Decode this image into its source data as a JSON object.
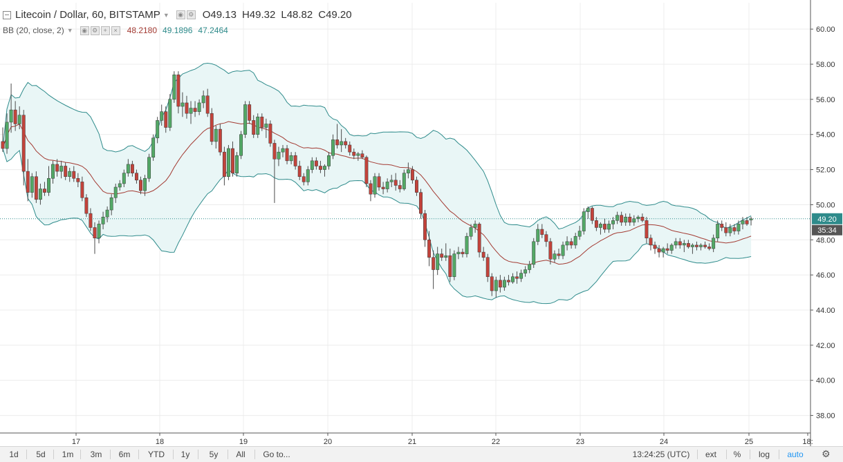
{
  "legend": {
    "symbol": "Litecoin / Dollar, 60, BITSTAMP",
    "o_label": "O",
    "o_value": "49.13",
    "h_label": "H",
    "h_value": "49.32",
    "l_label": "L",
    "l_value": "48.82",
    "c_label": "C",
    "c_value": "49.20"
  },
  "indicator": {
    "label": "BB (20, close, 2)",
    "basis": "48.2180",
    "upper": "49.1896",
    "lower": "47.2464"
  },
  "price_tag": {
    "last": "49.20",
    "countdown": "35:34"
  },
  "colors": {
    "up": "#53a966",
    "down": "#c3433b",
    "basis": "#a33a32",
    "bands": "#2e8b8b",
    "band_fill": "#e9f6f6",
    "grid": "#ececec",
    "axis_text": "#333333",
    "price_tag": "#2e8b8b",
    "countdown_tag": "#555555"
  },
  "bottom_bar": {
    "buttons": [
      "1d",
      "5d",
      "1m",
      "3m",
      "6m",
      "YTD",
      "1y",
      "5y",
      "All",
      "Go to..."
    ],
    "time": "13:24:25 (UTC)",
    "right_buttons": [
      "ext",
      "%",
      "log",
      "auto"
    ],
    "gear_icon": "gear-icon"
  },
  "chart_data": {
    "type": "candlestick",
    "title": "Litecoin / Dollar, 60, BITSTAMP",
    "xlabel": "",
    "ylabel": "",
    "ylim": [
      37.0,
      61.5
    ],
    "y_ticks": [
      38,
      40,
      42,
      44,
      46,
      48,
      50,
      52,
      54,
      56,
      58,
      60
    ],
    "y_tick_labels": [
      "38.00",
      "40.00",
      "42.00",
      "44.00",
      "46.00",
      "48.00",
      "50.00",
      "52.00",
      "54.00",
      "56.00",
      "58.00",
      "60.00"
    ],
    "x_tick_labels": [
      "17",
      "18",
      "19",
      "20",
      "21",
      "22",
      "23",
      "24",
      "25",
      "18:"
    ],
    "last_price": 49.2,
    "grid": true,
    "candles": [
      {
        "o": 53.6,
        "h": 54.4,
        "l": 53.0,
        "c": 53.2
      },
      {
        "o": 53.2,
        "h": 55.2,
        "l": 52.9,
        "c": 54.7
      },
      {
        "o": 54.7,
        "h": 56.9,
        "l": 54.1,
        "c": 55.4
      },
      {
        "o": 55.4,
        "h": 55.9,
        "l": 54.2,
        "c": 54.6
      },
      {
        "o": 54.6,
        "h": 55.6,
        "l": 54.3,
        "c": 55.1
      },
      {
        "o": 55.1,
        "h": 55.4,
        "l": 51.1,
        "c": 51.9
      },
      {
        "o": 51.9,
        "h": 52.6,
        "l": 50.2,
        "c": 50.7
      },
      {
        "o": 50.7,
        "h": 51.8,
        "l": 50.4,
        "c": 51.6
      },
      {
        "o": 51.6,
        "h": 51.9,
        "l": 50.1,
        "c": 50.3
      },
      {
        "o": 50.3,
        "h": 51.2,
        "l": 50.0,
        "c": 50.9
      },
      {
        "o": 50.9,
        "h": 51.3,
        "l": 50.5,
        "c": 50.7
      },
      {
        "o": 50.7,
        "h": 52.2,
        "l": 50.5,
        "c": 51.5
      },
      {
        "o": 51.5,
        "h": 52.5,
        "l": 51.2,
        "c": 52.3
      },
      {
        "o": 52.3,
        "h": 52.6,
        "l": 51.6,
        "c": 51.9
      },
      {
        "o": 51.9,
        "h": 52.5,
        "l": 51.5,
        "c": 52.2
      },
      {
        "o": 52.2,
        "h": 52.4,
        "l": 51.4,
        "c": 51.6
      },
      {
        "o": 51.6,
        "h": 52.1,
        "l": 51.3,
        "c": 51.9
      },
      {
        "o": 51.9,
        "h": 52.2,
        "l": 51.3,
        "c": 51.5
      },
      {
        "o": 51.5,
        "h": 51.8,
        "l": 51.0,
        "c": 51.3
      },
      {
        "o": 51.3,
        "h": 51.6,
        "l": 50.2,
        "c": 50.4
      },
      {
        "o": 50.4,
        "h": 50.6,
        "l": 49.3,
        "c": 49.5
      },
      {
        "o": 49.5,
        "h": 49.8,
        "l": 48.5,
        "c": 48.7
      },
      {
        "o": 48.7,
        "h": 49.0,
        "l": 47.2,
        "c": 48.1
      },
      {
        "o": 48.1,
        "h": 49.1,
        "l": 47.8,
        "c": 48.9
      },
      {
        "o": 48.9,
        "h": 49.6,
        "l": 48.6,
        "c": 49.3
      },
      {
        "o": 49.3,
        "h": 49.9,
        "l": 49.0,
        "c": 49.7
      },
      {
        "o": 49.7,
        "h": 50.6,
        "l": 49.4,
        "c": 50.4
      },
      {
        "o": 50.4,
        "h": 51.2,
        "l": 50.1,
        "c": 51.0
      },
      {
        "o": 51.0,
        "h": 51.4,
        "l": 50.8,
        "c": 51.2
      },
      {
        "o": 51.2,
        "h": 52.0,
        "l": 51.0,
        "c": 51.8
      },
      {
        "o": 51.8,
        "h": 52.6,
        "l": 51.6,
        "c": 52.3
      },
      {
        "o": 52.3,
        "h": 52.5,
        "l": 51.6,
        "c": 51.8
      },
      {
        "o": 51.8,
        "h": 52.0,
        "l": 51.2,
        "c": 51.4
      },
      {
        "o": 51.4,
        "h": 51.6,
        "l": 50.6,
        "c": 50.8
      },
      {
        "o": 50.8,
        "h": 51.7,
        "l": 50.5,
        "c": 51.5
      },
      {
        "o": 51.5,
        "h": 52.9,
        "l": 51.3,
        "c": 52.7
      },
      {
        "o": 52.7,
        "h": 54.0,
        "l": 52.5,
        "c": 53.8
      },
      {
        "o": 53.8,
        "h": 55.0,
        "l": 53.5,
        "c": 54.8
      },
      {
        "o": 54.8,
        "h": 55.7,
        "l": 54.5,
        "c": 55.3
      },
      {
        "o": 55.3,
        "h": 55.6,
        "l": 54.1,
        "c": 54.4
      },
      {
        "o": 54.4,
        "h": 56.3,
        "l": 54.2,
        "c": 56.0
      },
      {
        "o": 56.0,
        "h": 57.6,
        "l": 55.8,
        "c": 57.4
      },
      {
        "o": 57.4,
        "h": 57.6,
        "l": 55.2,
        "c": 55.6
      },
      {
        "o": 55.6,
        "h": 56.4,
        "l": 55.0,
        "c": 55.8
      },
      {
        "o": 55.8,
        "h": 56.2,
        "l": 54.9,
        "c": 55.2
      },
      {
        "o": 55.2,
        "h": 55.9,
        "l": 54.6,
        "c": 55.5
      },
      {
        "o": 55.5,
        "h": 55.9,
        "l": 55.0,
        "c": 55.3
      },
      {
        "o": 55.3,
        "h": 56.0,
        "l": 55.1,
        "c": 55.8
      },
      {
        "o": 55.8,
        "h": 56.5,
        "l": 55.5,
        "c": 56.2
      },
      {
        "o": 56.2,
        "h": 56.6,
        "l": 55.0,
        "c": 55.2
      },
      {
        "o": 55.2,
        "h": 55.5,
        "l": 53.4,
        "c": 53.6
      },
      {
        "o": 53.6,
        "h": 54.5,
        "l": 53.2,
        "c": 54.3
      },
      {
        "o": 54.3,
        "h": 54.6,
        "l": 52.8,
        "c": 53.0
      },
      {
        "o": 53.0,
        "h": 53.3,
        "l": 51.1,
        "c": 51.6
      },
      {
        "o": 51.6,
        "h": 53.4,
        "l": 51.4,
        "c": 53.2
      },
      {
        "o": 53.2,
        "h": 53.6,
        "l": 51.6,
        "c": 51.8
      },
      {
        "o": 51.8,
        "h": 53.0,
        "l": 51.6,
        "c": 52.8
      },
      {
        "o": 52.8,
        "h": 54.2,
        "l": 52.6,
        "c": 54.0
      },
      {
        "o": 54.0,
        "h": 55.9,
        "l": 53.8,
        "c": 55.7
      },
      {
        "o": 55.7,
        "h": 55.9,
        "l": 54.6,
        "c": 54.8
      },
      {
        "o": 54.8,
        "h": 55.1,
        "l": 53.8,
        "c": 54.0
      },
      {
        "o": 54.0,
        "h": 55.2,
        "l": 53.8,
        "c": 55.0
      },
      {
        "o": 55.0,
        "h": 55.2,
        "l": 54.2,
        "c": 54.4
      },
      {
        "o": 54.4,
        "h": 54.9,
        "l": 53.8,
        "c": 54.6
      },
      {
        "o": 54.6,
        "h": 54.8,
        "l": 53.3,
        "c": 53.5
      },
      {
        "o": 53.5,
        "h": 53.7,
        "l": 50.1,
        "c": 52.6
      },
      {
        "o": 52.6,
        "h": 53.3,
        "l": 52.2,
        "c": 53.0
      },
      {
        "o": 53.0,
        "h": 53.4,
        "l": 52.7,
        "c": 53.2
      },
      {
        "o": 53.2,
        "h": 53.4,
        "l": 52.3,
        "c": 52.5
      },
      {
        "o": 52.5,
        "h": 53.0,
        "l": 52.3,
        "c": 52.8
      },
      {
        "o": 52.8,
        "h": 53.0,
        "l": 52.0,
        "c": 52.2
      },
      {
        "o": 52.2,
        "h": 52.5,
        "l": 51.4,
        "c": 51.6
      },
      {
        "o": 51.6,
        "h": 51.8,
        "l": 51.1,
        "c": 51.3
      },
      {
        "o": 51.3,
        "h": 52.2,
        "l": 51.1,
        "c": 52.0
      },
      {
        "o": 52.0,
        "h": 52.7,
        "l": 51.8,
        "c": 52.5
      },
      {
        "o": 52.5,
        "h": 52.7,
        "l": 52.0,
        "c": 52.2
      },
      {
        "o": 52.2,
        "h": 52.5,
        "l": 51.8,
        "c": 52.0
      },
      {
        "o": 52.0,
        "h": 52.3,
        "l": 51.6,
        "c": 52.2
      },
      {
        "o": 52.2,
        "h": 53.0,
        "l": 52.0,
        "c": 52.8
      },
      {
        "o": 52.8,
        "h": 54.0,
        "l": 52.6,
        "c": 53.7
      },
      {
        "o": 53.7,
        "h": 54.6,
        "l": 53.2,
        "c": 53.4
      },
      {
        "o": 53.4,
        "h": 54.3,
        "l": 53.0,
        "c": 53.6
      },
      {
        "o": 53.6,
        "h": 53.8,
        "l": 53.2,
        "c": 53.4
      },
      {
        "o": 53.4,
        "h": 53.6,
        "l": 52.8,
        "c": 53.0
      },
      {
        "o": 53.0,
        "h": 53.2,
        "l": 52.6,
        "c": 52.8
      },
      {
        "o": 52.8,
        "h": 53.0,
        "l": 52.5,
        "c": 52.9
      },
      {
        "o": 52.9,
        "h": 53.1,
        "l": 52.6,
        "c": 52.7
      },
      {
        "o": 52.7,
        "h": 52.8,
        "l": 51.0,
        "c": 51.2
      },
      {
        "o": 51.2,
        "h": 51.4,
        "l": 50.2,
        "c": 50.6
      },
      {
        "o": 50.6,
        "h": 51.8,
        "l": 50.4,
        "c": 51.6
      },
      {
        "o": 51.6,
        "h": 51.8,
        "l": 50.8,
        "c": 51.0
      },
      {
        "o": 51.0,
        "h": 51.3,
        "l": 50.6,
        "c": 50.9
      },
      {
        "o": 50.9,
        "h": 51.5,
        "l": 50.7,
        "c": 51.3
      },
      {
        "o": 51.3,
        "h": 51.7,
        "l": 51.0,
        "c": 51.4
      },
      {
        "o": 51.4,
        "h": 51.8,
        "l": 50.8,
        "c": 51.1
      },
      {
        "o": 51.1,
        "h": 51.4,
        "l": 50.7,
        "c": 50.9
      },
      {
        "o": 50.9,
        "h": 52.0,
        "l": 50.8,
        "c": 51.8
      },
      {
        "o": 51.8,
        "h": 52.4,
        "l": 51.5,
        "c": 52.0
      },
      {
        "o": 52.0,
        "h": 52.2,
        "l": 51.2,
        "c": 51.4
      },
      {
        "o": 51.4,
        "h": 51.6,
        "l": 50.5,
        "c": 50.7
      },
      {
        "o": 50.7,
        "h": 50.9,
        "l": 49.2,
        "c": 49.5
      },
      {
        "o": 49.5,
        "h": 49.7,
        "l": 47.6,
        "c": 48.0
      },
      {
        "o": 48.0,
        "h": 48.5,
        "l": 46.5,
        "c": 47.0
      },
      {
        "o": 47.0,
        "h": 47.4,
        "l": 45.2,
        "c": 46.3
      },
      {
        "o": 46.3,
        "h": 47.6,
        "l": 46.0,
        "c": 47.2
      },
      {
        "o": 47.2,
        "h": 47.5,
        "l": 46.8,
        "c": 47.0
      },
      {
        "o": 47.0,
        "h": 47.8,
        "l": 46.8,
        "c": 47.1
      },
      {
        "o": 47.1,
        "h": 47.5,
        "l": 45.6,
        "c": 45.9
      },
      {
        "o": 45.9,
        "h": 47.4,
        "l": 45.7,
        "c": 47.2
      },
      {
        "o": 47.2,
        "h": 47.6,
        "l": 46.9,
        "c": 47.3
      },
      {
        "o": 47.3,
        "h": 47.5,
        "l": 47.0,
        "c": 47.2
      },
      {
        "o": 47.2,
        "h": 48.4,
        "l": 47.0,
        "c": 48.2
      },
      {
        "o": 48.2,
        "h": 48.9,
        "l": 48.0,
        "c": 48.7
      },
      {
        "o": 48.7,
        "h": 49.1,
        "l": 48.4,
        "c": 48.9
      },
      {
        "o": 48.9,
        "h": 49.0,
        "l": 47.0,
        "c": 47.3
      },
      {
        "o": 47.3,
        "h": 47.6,
        "l": 46.8,
        "c": 47.0
      },
      {
        "o": 47.0,
        "h": 47.2,
        "l": 45.6,
        "c": 45.9
      },
      {
        "o": 45.9,
        "h": 46.1,
        "l": 44.8,
        "c": 45.1
      },
      {
        "o": 45.1,
        "h": 45.9,
        "l": 44.7,
        "c": 45.7
      },
      {
        "o": 45.7,
        "h": 46.0,
        "l": 45.0,
        "c": 45.3
      },
      {
        "o": 45.3,
        "h": 45.9,
        "l": 45.1,
        "c": 45.7
      },
      {
        "o": 45.7,
        "h": 46.0,
        "l": 45.4,
        "c": 45.6
      },
      {
        "o": 45.6,
        "h": 46.1,
        "l": 45.5,
        "c": 45.9
      },
      {
        "o": 45.9,
        "h": 46.2,
        "l": 45.5,
        "c": 45.8
      },
      {
        "o": 45.8,
        "h": 46.3,
        "l": 45.6,
        "c": 46.1
      },
      {
        "o": 46.1,
        "h": 46.5,
        "l": 45.9,
        "c": 46.3
      },
      {
        "o": 46.3,
        "h": 46.8,
        "l": 46.1,
        "c": 46.6
      },
      {
        "o": 46.6,
        "h": 48.1,
        "l": 46.4,
        "c": 47.9
      },
      {
        "o": 47.9,
        "h": 48.9,
        "l": 47.7,
        "c": 48.6
      },
      {
        "o": 48.6,
        "h": 48.9,
        "l": 48.1,
        "c": 48.3
      },
      {
        "o": 48.3,
        "h": 48.5,
        "l": 47.6,
        "c": 47.9
      },
      {
        "o": 47.9,
        "h": 48.1,
        "l": 46.6,
        "c": 46.9
      },
      {
        "o": 46.9,
        "h": 47.4,
        "l": 46.7,
        "c": 47.2
      },
      {
        "o": 47.2,
        "h": 47.5,
        "l": 46.9,
        "c": 47.1
      },
      {
        "o": 47.1,
        "h": 47.9,
        "l": 46.9,
        "c": 47.7
      },
      {
        "o": 47.7,
        "h": 48.2,
        "l": 47.4,
        "c": 47.9
      },
      {
        "o": 47.9,
        "h": 48.1,
        "l": 47.5,
        "c": 47.7
      },
      {
        "o": 47.7,
        "h": 48.4,
        "l": 47.5,
        "c": 48.2
      },
      {
        "o": 48.2,
        "h": 48.8,
        "l": 48.0,
        "c": 48.5
      },
      {
        "o": 48.5,
        "h": 49.8,
        "l": 48.3,
        "c": 49.6
      },
      {
        "o": 49.6,
        "h": 49.9,
        "l": 49.2,
        "c": 49.8
      },
      {
        "o": 49.8,
        "h": 49.9,
        "l": 48.9,
        "c": 49.1
      },
      {
        "o": 49.1,
        "h": 49.3,
        "l": 48.5,
        "c": 48.7
      },
      {
        "o": 48.7,
        "h": 49.0,
        "l": 48.3,
        "c": 48.9
      },
      {
        "o": 48.9,
        "h": 49.2,
        "l": 48.4,
        "c": 48.6
      },
      {
        "o": 48.6,
        "h": 49.1,
        "l": 48.4,
        "c": 48.9
      },
      {
        "o": 48.9,
        "h": 49.3,
        "l": 48.6,
        "c": 49.1
      },
      {
        "o": 49.1,
        "h": 49.6,
        "l": 48.9,
        "c": 49.4
      },
      {
        "o": 49.4,
        "h": 49.6,
        "l": 48.8,
        "c": 49.0
      },
      {
        "o": 49.0,
        "h": 49.5,
        "l": 48.8,
        "c": 49.3
      },
      {
        "o": 49.3,
        "h": 49.5,
        "l": 48.8,
        "c": 49.0
      },
      {
        "o": 49.0,
        "h": 49.4,
        "l": 48.8,
        "c": 49.2
      },
      {
        "o": 49.2,
        "h": 49.4,
        "l": 49.0,
        "c": 49.3
      },
      {
        "o": 49.3,
        "h": 49.5,
        "l": 49.0,
        "c": 49.1
      },
      {
        "o": 49.1,
        "h": 49.3,
        "l": 47.8,
        "c": 48.1
      },
      {
        "o": 48.1,
        "h": 48.3,
        "l": 47.4,
        "c": 47.7
      },
      {
        "o": 47.7,
        "h": 47.9,
        "l": 47.2,
        "c": 47.5
      },
      {
        "o": 47.5,
        "h": 47.7,
        "l": 47.0,
        "c": 47.3
      },
      {
        "o": 47.3,
        "h": 47.6,
        "l": 47.0,
        "c": 47.5
      },
      {
        "o": 47.5,
        "h": 47.8,
        "l": 47.2,
        "c": 47.4
      },
      {
        "o": 47.4,
        "h": 47.8,
        "l": 47.2,
        "c": 47.7
      },
      {
        "o": 47.7,
        "h": 48.1,
        "l": 47.5,
        "c": 47.9
      },
      {
        "o": 47.9,
        "h": 48.1,
        "l": 47.5,
        "c": 47.7
      },
      {
        "o": 47.7,
        "h": 48.0,
        "l": 47.3,
        "c": 47.8
      },
      {
        "o": 47.8,
        "h": 48.0,
        "l": 47.5,
        "c": 47.6
      },
      {
        "o": 47.6,
        "h": 47.8,
        "l": 47.2,
        "c": 47.7
      },
      {
        "o": 47.7,
        "h": 47.9,
        "l": 47.4,
        "c": 47.6
      },
      {
        "o": 47.6,
        "h": 47.8,
        "l": 47.4,
        "c": 47.7
      },
      {
        "o": 47.7,
        "h": 47.9,
        "l": 47.5,
        "c": 47.6
      },
      {
        "o": 47.6,
        "h": 47.8,
        "l": 47.4,
        "c": 47.5
      },
      {
        "o": 47.5,
        "h": 48.3,
        "l": 47.3,
        "c": 48.1
      },
      {
        "o": 48.1,
        "h": 49.1,
        "l": 47.9,
        "c": 48.9
      },
      {
        "o": 48.9,
        "h": 49.1,
        "l": 48.5,
        "c": 48.7
      },
      {
        "o": 48.7,
        "h": 49.0,
        "l": 48.2,
        "c": 48.4
      },
      {
        "o": 48.4,
        "h": 48.9,
        "l": 48.2,
        "c": 48.7
      },
      {
        "o": 48.7,
        "h": 48.9,
        "l": 48.3,
        "c": 48.5
      },
      {
        "o": 48.5,
        "h": 49.1,
        "l": 48.3,
        "c": 48.9
      },
      {
        "o": 48.9,
        "h": 49.3,
        "l": 48.6,
        "c": 49.1
      },
      {
        "o": 49.1,
        "h": 49.3,
        "l": 48.8,
        "c": 48.9
      },
      {
        "o": 49.13,
        "h": 49.32,
        "l": 48.82,
        "c": 49.2
      }
    ]
  }
}
